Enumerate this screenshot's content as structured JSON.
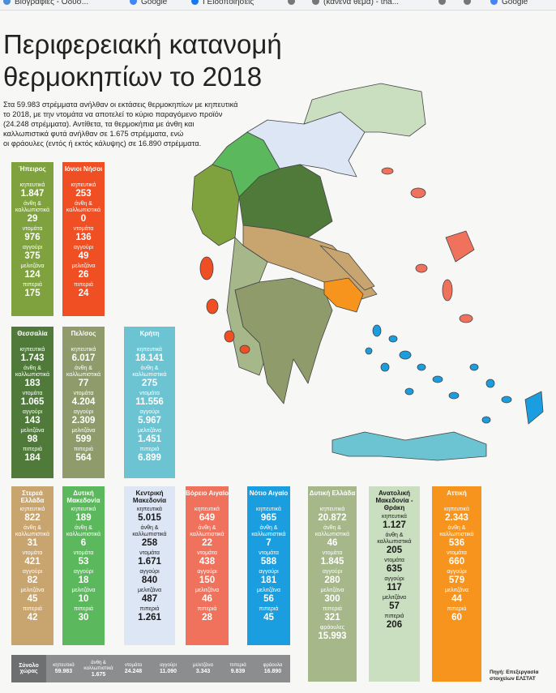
{
  "bookmarks": [
    "Βιογραφίες - Οδυσ...",
    "Google",
    "Ι Ειδοποιήσεις",
    "(κανένα θέμα) - tha...",
    "Google"
  ],
  "title": [
    "Περιφερειακή κατανομή",
    "θερμοκηπίων το 2018"
  ],
  "intro": [
    "Στα 59.983 στρέμματα ανήλθαν οι εκτάσεις θερμοκηπίων με κηπευτικά",
    "το 2018, με την ντομάτα να αποτελεί το κύριο παραγόμενο προϊόν",
    "(24.248 στρέμματα). Αντίθετα, τα θερμοκήπια με άνθη και",
    "καλλωπιστικά φυτά ανήλθαν σε 1.675 στρέμματα, ενώ",
    "οι φράουλες (εντός ή εκτός κάλυψης) σε 16.890 στρέμματα."
  ],
  "cards": [
    {
      "name": "Ήπειρος",
      "color": "#7fa23e",
      "rows": [
        {
          "label": "κηπευτικά",
          "value": "1.847"
        },
        {
          "label": "άνθη & καλλωπιστικά",
          "value": "29"
        },
        {
          "label": "ντομάτα",
          "value": "976"
        },
        {
          "label": "αγγούρι",
          "value": "375"
        },
        {
          "label": "μελιτζάνα",
          "value": "124"
        },
        {
          "label": "πιπεριά",
          "value": "175"
        }
      ]
    },
    {
      "name": "Ιόνιοι Νήσοι",
      "color": "#f04e23",
      "rows": [
        {
          "label": "κηπευτικά",
          "value": "253"
        },
        {
          "label": "άνθη & καλλωπιστικά",
          "value": "0"
        },
        {
          "label": "ντομάτα",
          "value": "136"
        },
        {
          "label": "αγγούρι",
          "value": "49"
        },
        {
          "label": "μελιτζάνα",
          "value": "26"
        },
        {
          "label": "πιπεριά",
          "value": "24"
        }
      ]
    },
    {
      "name": "Θεσσαλία",
      "color": "#4f7a3a",
      "rows": [
        {
          "label": "κηπευτικά",
          "value": "1.743"
        },
        {
          "label": "άνθη & καλλωπιστικά",
          "value": "183"
        },
        {
          "label": "ντομάτα",
          "value": "1.065"
        },
        {
          "label": "αγγούρι",
          "value": "143"
        },
        {
          "label": "μελιτζάνα",
          "value": "98"
        },
        {
          "label": "πιπεριά",
          "value": "184"
        }
      ]
    },
    {
      "name": "Πελ/σος",
      "color": "#8f9b6a",
      "rows": [
        {
          "label": "κηπευτικά",
          "value": "6.017"
        },
        {
          "label": "άνθη & καλλωπιστικά",
          "value": "77"
        },
        {
          "label": "ντομάτα",
          "value": "4.204"
        },
        {
          "label": "αγγούρι",
          "value": "2.309"
        },
        {
          "label": "μελιτζάνα",
          "value": "599"
        },
        {
          "label": "πιπεριά",
          "value": "564"
        }
      ]
    },
    {
      "name": "Κρήτη",
      "color": "#6cc4d2",
      "rows": [
        {
          "label": "κηπευτικά",
          "value": "18.141"
        },
        {
          "label": "άνθη & καλλωπιστικά",
          "value": "275"
        },
        {
          "label": "ντομάτα",
          "value": "11.556"
        },
        {
          "label": "αγγούρι",
          "value": "5.967"
        },
        {
          "label": "μελιτζάνα",
          "value": "1.451"
        },
        {
          "label": "πιπεριά",
          "value": "6.899"
        }
      ]
    },
    {
      "name": "Στερεά Ελλάδα",
      "color": "#c8a46e",
      "rows": [
        {
          "label": "κηπευτικά",
          "value": "822"
        },
        {
          "label": "άνθη & καλλωπιστικά",
          "value": "31"
        },
        {
          "label": "ντομάτα",
          "value": "421"
        },
        {
          "label": "αγγούρι",
          "value": "82"
        },
        {
          "label": "μελιτζάνα",
          "value": "45"
        },
        {
          "label": "πιπεριά",
          "value": "42"
        }
      ]
    },
    {
      "name": "Δυτική Μακεδονία",
      "color": "#5cb85c",
      "rows": [
        {
          "label": "κηπευτικά",
          "value": "189"
        },
        {
          "label": "άνθη & καλλωπιστικά",
          "value": "6"
        },
        {
          "label": "ντομάτα",
          "value": "53"
        },
        {
          "label": "αγγούρι",
          "value": "18"
        },
        {
          "label": "μελιτζάνα",
          "value": "10"
        },
        {
          "label": "πιπεριά",
          "value": "30"
        }
      ]
    },
    {
      "name": "Κεντρική Μακεδονία",
      "color": "#dde6f5",
      "rows": [
        {
          "label": "κηπευτικά",
          "value": "5.015"
        },
        {
          "label": "άνθη & καλλωπιστικά",
          "value": "258"
        },
        {
          "label": "ντομάτα",
          "value": "1.671"
        },
        {
          "label": "αγγούρι",
          "value": "840"
        },
        {
          "label": "μελιτζάνα",
          "value": "487"
        },
        {
          "label": "πιπεριά",
          "value": "1.261"
        }
      ]
    },
    {
      "name": "Βόρειο Αιγαίο",
      "color": "#f0725c",
      "rows": [
        {
          "label": "κηπευτικά",
          "value": "649"
        },
        {
          "label": "άνθη & καλλωπιστικά",
          "value": "22"
        },
        {
          "label": "ντομάτα",
          "value": "438"
        },
        {
          "label": "αγγούρι",
          "value": "150"
        },
        {
          "label": "μελιτζάνα",
          "value": "46"
        },
        {
          "label": "πιπεριά",
          "value": "28"
        }
      ]
    },
    {
      "name": "Νότιο Αιγαίο",
      "color": "#1a9ee0",
      "rows": [
        {
          "label": "κηπευτικά",
          "value": "965"
        },
        {
          "label": "άνθη & καλλωπιστικά",
          "value": "7"
        },
        {
          "label": "ντομάτα",
          "value": "588"
        },
        {
          "label": "αγγούρι",
          "value": "181"
        },
        {
          "label": "μελιτζάνα",
          "value": "56"
        },
        {
          "label": "πιπεριά",
          "value": "45"
        }
      ]
    },
    {
      "name": "Δυτική Ελλάδα",
      "color": "#a6b78a",
      "rows": [
        {
          "label": "κηπευτικά",
          "value": "20.872"
        },
        {
          "label": "άνθη & καλλωπιστικά",
          "value": "46"
        },
        {
          "label": "ντομάτα",
          "value": "1.845"
        },
        {
          "label": "αγγούρι",
          "value": "280"
        },
        {
          "label": "μελιτζάνα",
          "value": "300"
        },
        {
          "label": "πιπεριά",
          "value": "321"
        },
        {
          "label": "φράουλες",
          "value": "15.993"
        }
      ]
    },
    {
      "name": "Ανατολική Μακεδονία - Θράκη",
      "color": "#c9dfc0",
      "rows": [
        {
          "label": "κηπευτικά",
          "value": "1.127"
        },
        {
          "label": "άνθη & καλλωπιστικά",
          "value": "205"
        },
        {
          "label": "ντομάτα",
          "value": "635"
        },
        {
          "label": "αγγούρι",
          "value": "117"
        },
        {
          "label": "μελιτζάνα",
          "value": "57"
        },
        {
          "label": "πιπεριά",
          "value": "206"
        }
      ]
    },
    {
      "name": "Αττική",
      "color": "#f7941d",
      "rows": [
        {
          "label": "κηπευτικά",
          "value": "2.343"
        },
        {
          "label": "άνθη & καλλωπιστικά",
          "value": "536"
        },
        {
          "label": "ντομάτα",
          "value": "660"
        },
        {
          "label": "αγγούρι",
          "value": "579"
        },
        {
          "label": "μελιτζάνα",
          "value": "44"
        },
        {
          "label": "πιπεριά",
          "value": "60"
        }
      ]
    }
  ],
  "totals": {
    "label": "Σύνολο χώρας",
    "items": [
      {
        "label": "κηπευτικά",
        "value": "59.983"
      },
      {
        "label": "άνθη & καλλωπιστικά",
        "value": "1.675"
      },
      {
        "label": "ντομάτα",
        "value": "24.248"
      },
      {
        "label": "αγγούρι",
        "value": "11.090"
      },
      {
        "label": "μελιτζάνα",
        "value": "3.343"
      },
      {
        "label": "πιπεριά",
        "value": "9.839"
      },
      {
        "label": "φράουλα",
        "value": "16.890"
      }
    ]
  },
  "source": [
    "Πηγή: Επεξεργασία",
    "στοιχείων ΕΛΣΤΑΤ"
  ]
}
